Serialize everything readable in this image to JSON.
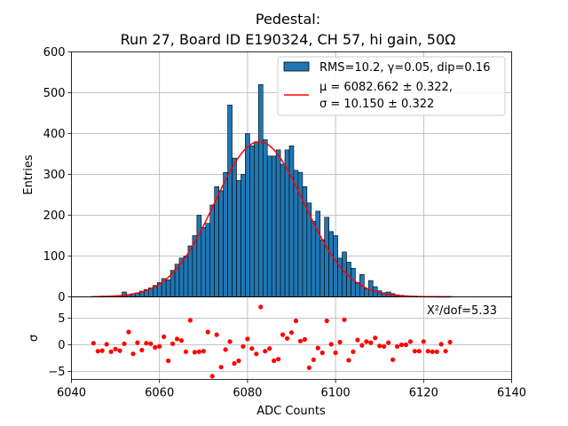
{
  "title_line1": "Pedestal:",
  "title_line2": "Run 27, Board ID E190324, CH 57, hi gain, 50Ω",
  "colors": {
    "bar_fill": "#1f77b4",
    "bar_edge": "#000000",
    "fit_line": "#ff0000",
    "residual_point": "#ff0000",
    "grid": "#b0b0b0"
  },
  "chart_data": [
    {
      "type": "bar",
      "panel": "histogram",
      "ylabel": "Entries",
      "xlim": [
        6040,
        6140
      ],
      "ylim": [
        0,
        600
      ],
      "yticks": [
        "0",
        "100",
        "200",
        "300",
        "400",
        "500",
        "600"
      ],
      "grid": true,
      "legend_position": "top-right",
      "legend": {
        "hist_label": "RMS=10.2, γ=0.05, dip=0.16",
        "fit_label_line1": "μ = 6082.662 ± 0.322,",
        "fit_label_line2": "σ = 10.150 ± 0.322"
      },
      "bin_width": 1,
      "x": [
        6045,
        6046,
        6047,
        6048,
        6049,
        6050,
        6051,
        6052,
        6053,
        6054,
        6055,
        6056,
        6057,
        6058,
        6059,
        6060,
        6061,
        6062,
        6063,
        6064,
        6065,
        6066,
        6067,
        6068,
        6069,
        6070,
        6071,
        6072,
        6073,
        6074,
        6075,
        6076,
        6077,
        6078,
        6079,
        6080,
        6081,
        6082,
        6083,
        6084,
        6085,
        6086,
        6087,
        6088,
        6089,
        6090,
        6091,
        6092,
        6093,
        6094,
        6095,
        6096,
        6097,
        6098,
        6099,
        6100,
        6101,
        6102,
        6103,
        6104,
        6105,
        6106,
        6107,
        6108,
        6109,
        6110,
        6111,
        6112,
        6113,
        6114,
        6115,
        6116,
        6117,
        6118,
        6119,
        6120,
        6121,
        6122,
        6123,
        6124,
        6125,
        6126
      ],
      "values": [
        1,
        1,
        2,
        1,
        1,
        2,
        3,
        12,
        6,
        8,
        10,
        14,
        18,
        22,
        28,
        35,
        45,
        42,
        65,
        80,
        95,
        100,
        125,
        150,
        200,
        170,
        180,
        225,
        270,
        260,
        305,
        470,
        340,
        285,
        300,
        400,
        370,
        380,
        520,
        385,
        345,
        345,
        360,
        325,
        360,
        370,
        310,
        305,
        270,
        230,
        185,
        210,
        140,
        195,
        160,
        150,
        95,
        110,
        85,
        70,
        35,
        55,
        20,
        40,
        25,
        15,
        10,
        12,
        8,
        5,
        4,
        3,
        2,
        2,
        1,
        1,
        1,
        1,
        1,
        1,
        1,
        1
      ],
      "fit_curve": {
        "mu": 6082.662,
        "sigma": 10.15,
        "amplitude": 380
      }
    },
    {
      "type": "scatter",
      "panel": "residuals",
      "xlabel": "ADC Counts",
      "ylabel": "σ",
      "xlim": [
        6040,
        6140
      ],
      "ylim": [
        -6.5,
        9
      ],
      "xticks": [
        "6040",
        "6060",
        "6080",
        "6100",
        "6120",
        "6140"
      ],
      "yticks": [
        "−5",
        "0",
        "5"
      ],
      "grid": true,
      "annotation": "X²/dof=5.33",
      "x": [
        6045,
        6046,
        6047,
        6048,
        6049,
        6050,
        6051,
        6052,
        6053,
        6054,
        6055,
        6056,
        6057,
        6058,
        6059,
        6060,
        6061,
        6062,
        6063,
        6064,
        6065,
        6066,
        6067,
        6068,
        6069,
        6070,
        6071,
        6072,
        6073,
        6074,
        6075,
        6076,
        6077,
        6078,
        6079,
        6080,
        6081,
        6082,
        6083,
        6084,
        6085,
        6086,
        6087,
        6088,
        6089,
        6090,
        6091,
        6092,
        6093,
        6094,
        6095,
        6096,
        6097,
        6098,
        6099,
        6100,
        6101,
        6102,
        6103,
        6104,
        6105,
        6106,
        6107,
        6108,
        6109,
        6110,
        6111,
        6112,
        6113,
        6114,
        6115,
        6116,
        6117,
        6118,
        6119,
        6120,
        6121,
        6122,
        6123,
        6124,
        6125,
        6126
      ],
      "values": [
        0.3,
        -1.2,
        -1.1,
        0.1,
        -1.3,
        -0.8,
        -1.1,
        0.2,
        2.4,
        -1.7,
        0.4,
        -1.0,
        0.3,
        0.2,
        -0.5,
        -0.3,
        1.5,
        -3.0,
        0.2,
        1.1,
        0.8,
        -1.3,
        4.6,
        -1.4,
        -1.3,
        -1.2,
        2.4,
        -5.9,
        1.9,
        -4.2,
        -0.9,
        0.6,
        -3.5,
        -3.0,
        -0.3,
        1.1,
        -0.7,
        -1.7,
        7.1,
        -1.2,
        -0.7,
        -3.0,
        -2.7,
        1.9,
        1.2,
        2.3,
        4.5,
        0.7,
        1.0,
        -4.3,
        -2.8,
        -0.6,
        -1.5,
        4.5,
        0.1,
        -1.5,
        0.5,
        4.7,
        -2.9,
        -1.3,
        0.9,
        -0.1,
        0.6,
        0.4,
        1.3,
        -0.2,
        -0.3,
        0.4,
        -2.8,
        -0.3,
        0.0,
        0.0,
        0.6,
        -1.2,
        -1.2,
        0.6,
        -1.2,
        -1.3,
        -1.3,
        0.1,
        -1.2,
        0.5
      ]
    }
  ]
}
